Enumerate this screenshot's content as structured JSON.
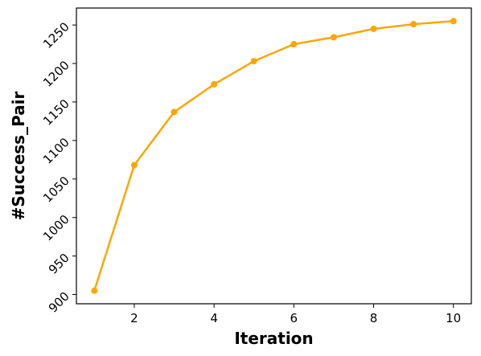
{
  "chart_data": {
    "type": "line",
    "xlabel": "Iteration",
    "ylabel": "#Success_Pair",
    "xlim": [
      0.55,
      10.45
    ],
    "ylim": [
      888,
      1272
    ],
    "xticks": [
      2,
      4,
      6,
      8,
      10
    ],
    "yticks": [
      900,
      950,
      1000,
      1050,
      1100,
      1150,
      1200,
      1250
    ],
    "grid": false,
    "series": [
      {
        "color": "#FFA500",
        "x": [
          1,
          2,
          3,
          4,
          5,
          6,
          7,
          8,
          9,
          10
        ],
        "y": [
          905,
          1068,
          1137,
          1173,
          1203,
          1225,
          1234,
          1245,
          1251,
          1255
        ]
      }
    ]
  }
}
